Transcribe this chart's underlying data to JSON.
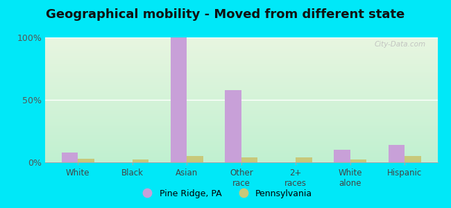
{
  "title": "Geographical mobility - Moved from different state",
  "categories": [
    "White",
    "Black",
    "Asian",
    "Other\nrace",
    "2+\nraces",
    "White\nalone",
    "Hispanic"
  ],
  "pine_ridge_values": [
    8,
    0,
    100,
    58,
    0,
    10,
    14
  ],
  "pennsylvania_values": [
    3,
    2,
    5,
    4,
    4,
    2,
    5
  ],
  "pine_ridge_color": "#c8a0d8",
  "pennsylvania_color": "#c8c87a",
  "bar_width": 0.3,
  "ylim": [
    0,
    100
  ],
  "yticks": [
    0,
    50,
    100
  ],
  "ytick_labels": [
    "0%",
    "50%",
    "100%"
  ],
  "bg_top_color": "#e8f5e0",
  "bg_bottom_color": "#c0f0d0",
  "outer_bg": "#00e8f8",
  "legend_pine_ridge": "Pine Ridge, PA",
  "legend_pennsylvania": "Pennsylvania",
  "title_fontsize": 13,
  "watermark": "City-Data.com"
}
